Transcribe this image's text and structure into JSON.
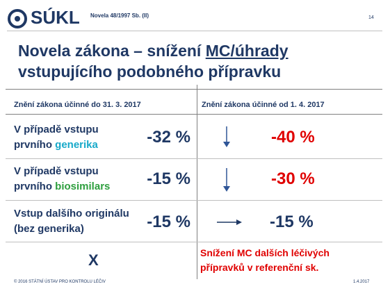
{
  "header": {
    "logo": "SÚKL",
    "subtitle": "Novela 48/1997 Sb. (II)",
    "page": "14"
  },
  "title": {
    "line1": "Novela zákona – snížení",
    "underlined": "MC/úhrady",
    "line2": "vstupujícího podobného přípravku"
  },
  "table": {
    "headers": [
      "Znění zákona účinné do 31. 3. 2017",
      "Znění zákona účinné od 1. 4. 2017"
    ],
    "rows": [
      {
        "label": [
          "V případě vstupu",
          "prvního"
        ],
        "highlight": "generika",
        "old": "-32 %",
        "new": "-40 %"
      },
      {
        "label": [
          "V případě vstupu",
          "prvního"
        ],
        "highlight": "biosimilars",
        "old": "-15 %",
        "new": "-30 %"
      },
      {
        "label": [
          "Vstup dalšího originálu",
          "(bez generika)"
        ],
        "old": "-15 %",
        "new": "-15 %"
      },
      {
        "old": "X",
        "new": [
          "Snížení MC dalších léčivých",
          "přípravků v referenční sk."
        ]
      }
    ]
  },
  "footer": {
    "left": "© 2016 STÁTNÍ ÚSTAV PRO KONTROLU LÉČIV",
    "right": "1.4.2017"
  }
}
